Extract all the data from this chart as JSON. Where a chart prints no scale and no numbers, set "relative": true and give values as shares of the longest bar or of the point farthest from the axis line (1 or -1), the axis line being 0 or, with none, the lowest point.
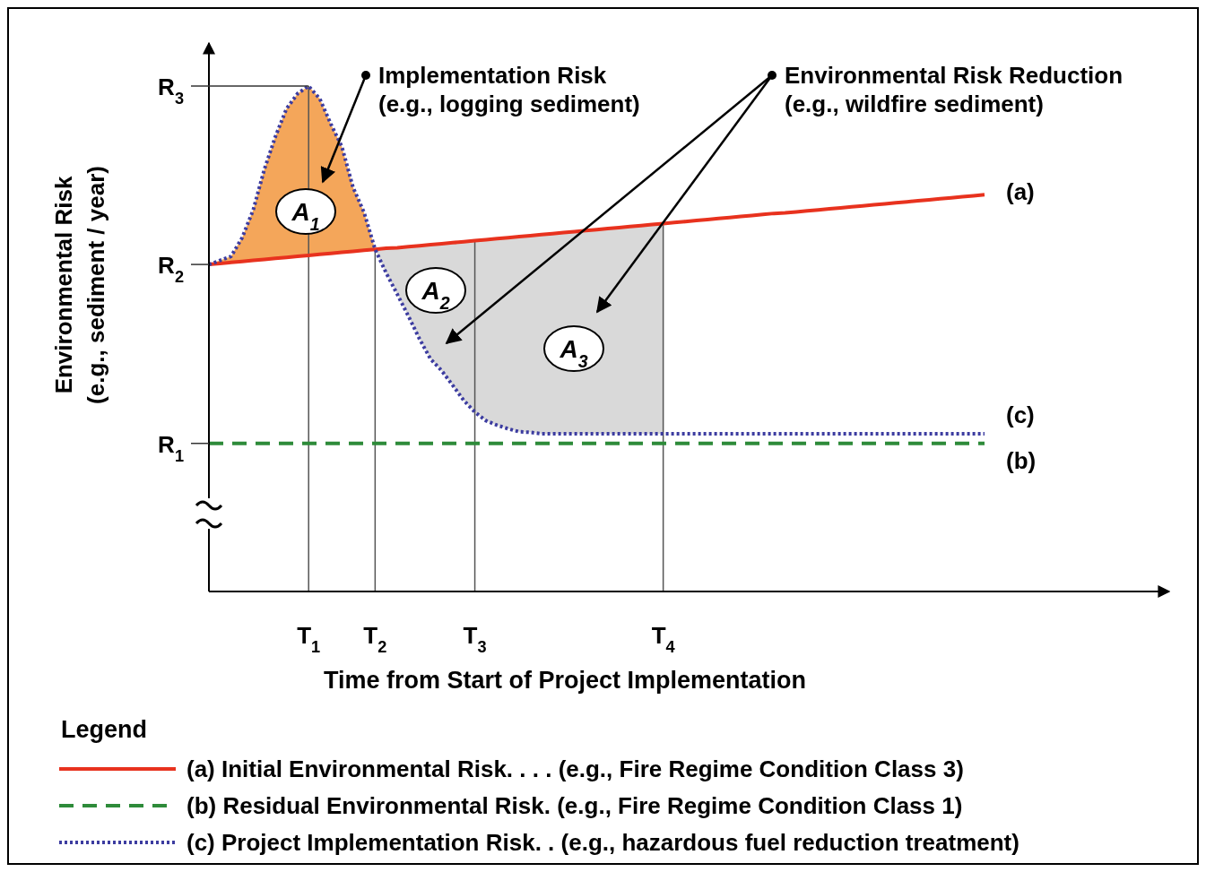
{
  "chart_data": {
    "type": "line",
    "relative": true,
    "xlabel": "Time from Start of Project Implementation",
    "ylabel": "Environmental Risk\n(e.g., sediment / year)",
    "legend_title": "Legend",
    "legend": "bottom",
    "categories": [
      null,
      null,
      null,
      null,
      null,
      null,
      null,
      null,
      null,
      "T$_{1}$",
      null,
      null,
      null,
      null,
      null,
      "T$_{2}$",
      null,
      null,
      null,
      null,
      null,
      null,
      null,
      null,
      "T$_{3}$",
      null,
      null,
      null,
      null,
      null,
      null,
      null,
      null,
      null,
      null,
      null,
      null,
      null,
      null,
      null,
      null,
      "T$_{4}$",
      null,
      null,
      null,
      null,
      null,
      null,
      null,
      null,
      null,
      null,
      null,
      null,
      null,
      null,
      null,
      null,
      null,
      null,
      null,
      null,
      null,
      null,
      null,
      null,
      null,
      null,
      null,
      null,
      null
    ],
    "series": [
      {
        "name": "(a) Initial Environmental Risk. . . . (e.g., Fire Regime Condition Class 3)",
        "color": "#e8321e",
        "line_style": "solid",
        "values": [
          0.647,
          0.649,
          0.651,
          0.653,
          0.655,
          0.657,
          0.659,
          0.661,
          0.663,
          0.665,
          0.667,
          0.669,
          0.671,
          0.673,
          0.675,
          0.677,
          0.679,
          0.68,
          0.682,
          0.684,
          0.686,
          0.688,
          0.69,
          0.692,
          0.694,
          0.696,
          0.698,
          0.7,
          0.702,
          0.704,
          0.706,
          0.708,
          0.71,
          0.712,
          0.714,
          0.716,
          0.718,
          0.72,
          0.722,
          0.724,
          0.726,
          0.728,
          0.73,
          0.732,
          0.734,
          0.736,
          0.738,
          0.74,
          0.742,
          0.744,
          0.746,
          0.748,
          0.749,
          0.751,
          0.753,
          0.755,
          0.757,
          0.759,
          0.761,
          0.763,
          0.765,
          0.767,
          0.769,
          0.771,
          0.773,
          0.775,
          0.777,
          0.779,
          0.781,
          0.783,
          0.785
        ]
      },
      {
        "name": "(b) Residual Environmental Risk. (e.g., Fire Regime Condition Class 1)",
        "color": "#2e8b3a",
        "line_style": "dashed",
        "values": [
          0.293,
          0.293,
          0.293,
          0.293,
          0.293,
          0.293,
          0.293,
          0.293,
          0.293,
          0.293,
          0.293,
          0.293,
          0.293,
          0.293,
          0.293,
          0.293,
          0.293,
          0.293,
          0.293,
          0.293,
          0.293,
          0.293,
          0.293,
          0.293,
          0.293,
          0.293,
          0.293,
          0.293,
          0.293,
          0.293,
          0.293,
          0.293,
          0.293,
          0.293,
          0.293,
          0.293,
          0.293,
          0.293,
          0.293,
          0.293,
          0.293,
          0.293,
          0.293,
          0.293,
          0.293,
          0.293,
          0.293,
          0.293,
          0.293,
          0.293,
          0.293,
          0.293,
          0.293,
          0.293,
          0.293,
          0.293,
          0.293,
          0.293,
          0.293,
          0.293,
          0.293,
          0.293,
          0.293,
          0.293,
          0.293,
          0.293,
          0.293,
          0.293,
          0.293,
          0.293,
          0.293
        ]
      },
      {
        "name": "(c) Project Implementation Risk. . (e.g., hazardous fuel reduction treatment)",
        "color": "#3c3ca0",
        "line_style": "dotted",
        "values": [
          0.647,
          0.655,
          0.663,
          0.7,
          0.755,
          0.835,
          0.9,
          0.955,
          0.985,
          1,
          0.975,
          0.925,
          0.88,
          0.8,
          0.75,
          0.677,
          0.63,
          0.588,
          0.545,
          0.5,
          0.46,
          0.437,
          0.408,
          0.378,
          0.355,
          0.338,
          0.329,
          0.322,
          0.316,
          0.315,
          0.312,
          0.312,
          0.312,
          0.312,
          0.312,
          0.312,
          0.312,
          0.312,
          0.312,
          0.312,
          0.312,
          0.312,
          0.312,
          0.312,
          0.312,
          0.312,
          0.312,
          0.312,
          0.312,
          0.312,
          0.312,
          0.312,
          0.312,
          0.312,
          0.312,
          0.312,
          0.312,
          0.312,
          0.312,
          0.312,
          0.312,
          0.312,
          0.312,
          0.312,
          0.312,
          0.312,
          0.312,
          0.312,
          0.312,
          0.312,
          0.312
        ]
      }
    ],
    "annotations": [
      "Implementation Risk\n(e.g., logging sediment)",
      "Environmental Risk Reduction\n(e.g., wildfire sediment)",
      "A$_{1}$",
      "A$_{2}$",
      "A$_{3}$",
      "(a)",
      "(b)",
      "(c)",
      "R$_{1}$",
      "R$_{2}$",
      "R$_{3}$"
    ]
  }
}
